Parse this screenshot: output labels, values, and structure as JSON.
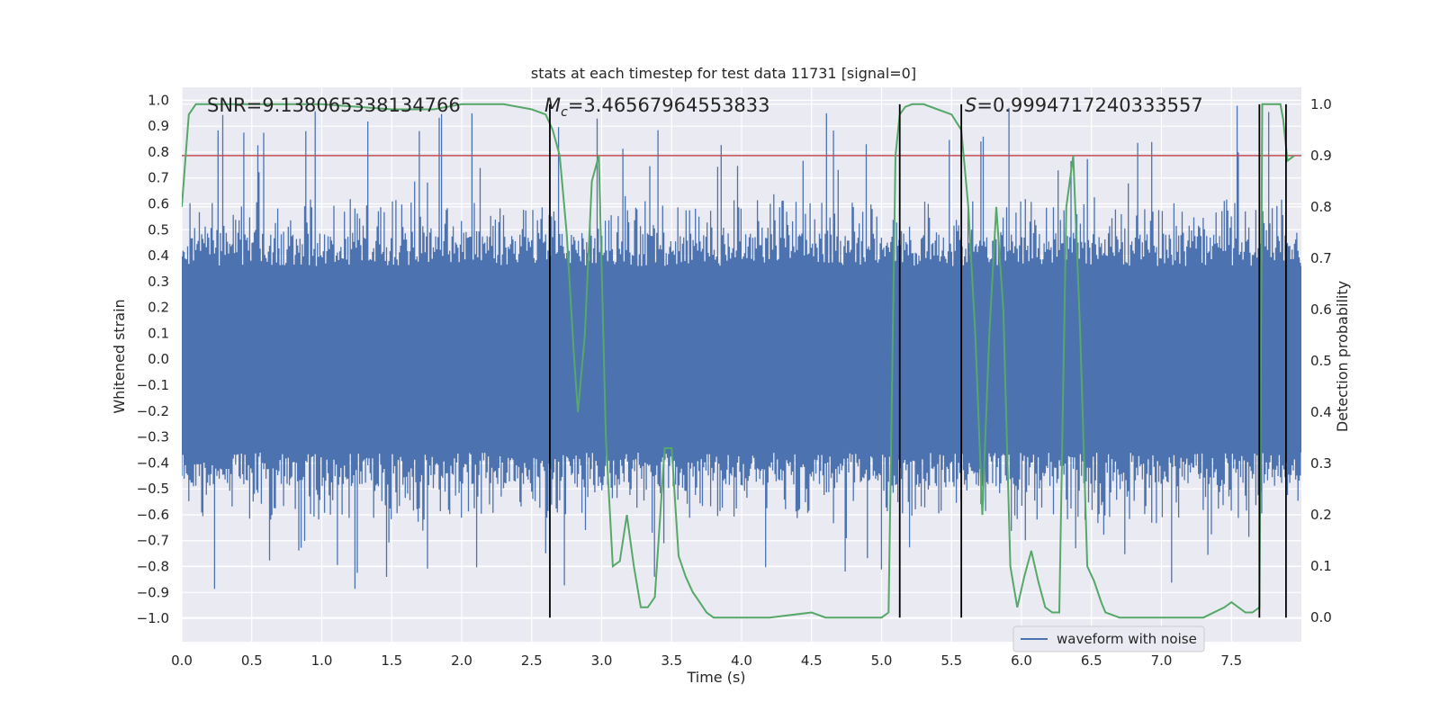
{
  "chart_data": {
    "type": "line",
    "title": "stats at each timestep for test data 11731 [signal=0]",
    "xlabel": "Time (s)",
    "ylabel_left": "Whitened strain",
    "ylabel_right": "Detection probability",
    "xlim": [
      0.0,
      8.0
    ],
    "ylim_left": [
      -1.09,
      1.05
    ],
    "ylim_right": [
      -0.047,
      1.033
    ],
    "x_ticks": [
      "0.0",
      "0.5",
      "1.0",
      "1.5",
      "2.0",
      "2.5",
      "3.0",
      "3.5",
      "4.0",
      "4.5",
      "5.0",
      "5.5",
      "6.0",
      "6.5",
      "7.0",
      "7.5"
    ],
    "y_left_ticks": [
      "1.0",
      "0.9",
      "0.8",
      "0.7",
      "0.6",
      "0.5",
      "0.4",
      "0.3",
      "0.2",
      "0.1",
      "0.0",
      "−0.1",
      "−0.2",
      "−0.3",
      "−0.4",
      "−0.5",
      "−0.6",
      "−0.7",
      "−0.8",
      "−0.9",
      "−1.0"
    ],
    "y_right_ticks": [
      "0.0",
      "0.1",
      "0.2",
      "0.3",
      "0.4",
      "0.5",
      "0.6",
      "0.7",
      "0.8",
      "0.9",
      "1.0"
    ],
    "annotations": {
      "snr": "SNR=9.138065338134766",
      "mc_symbol": "M",
      "mc_sub": "c",
      "mc_value": "=3.46567964553833",
      "s_symbol": "S",
      "s_value": "=0.9994717240333557"
    },
    "threshold": 0.9,
    "vertical_lines": [
      2.63,
      5.13,
      5.57,
      7.7,
      7.89
    ],
    "series": [
      {
        "name": "waveform with noise",
        "axis": "left",
        "color": "#4c72b0",
        "kind": "noise",
        "envelope_core": 0.36,
        "typical_peak": 0.62,
        "max_peak": 0.98,
        "min_trough": -0.89
      },
      {
        "name": "detection probability",
        "axis": "right",
        "color": "#55a868",
        "x": [
          0.0,
          0.05,
          0.1,
          0.2,
          0.5,
          1.0,
          1.5,
          1.7,
          1.8,
          2.0,
          2.3,
          2.5,
          2.6,
          2.65,
          2.7,
          2.75,
          2.8,
          2.83,
          2.88,
          2.93,
          2.98,
          3.03,
          3.08,
          3.13,
          3.18,
          3.23,
          3.28,
          3.33,
          3.38,
          3.45,
          3.5,
          3.55,
          3.6,
          3.65,
          3.7,
          3.75,
          3.8,
          3.9,
          4.0,
          4.2,
          4.5,
          4.6,
          5.0,
          5.05,
          5.1,
          5.13,
          5.17,
          5.22,
          5.3,
          5.4,
          5.5,
          5.57,
          5.62,
          5.67,
          5.72,
          5.77,
          5.82,
          5.87,
          5.92,
          5.97,
          6.02,
          6.07,
          6.12,
          6.17,
          6.22,
          6.27,
          6.32,
          6.37,
          6.42,
          6.47,
          6.52,
          6.57,
          6.6,
          6.7,
          6.8,
          7.0,
          7.3,
          7.45,
          7.5,
          7.6,
          7.65,
          7.7,
          7.72,
          7.77,
          7.85,
          7.87,
          7.9,
          7.95
        ],
        "values": [
          0.8,
          0.98,
          1.0,
          1.0,
          1.0,
          1.0,
          0.99,
          0.99,
          0.99,
          1.0,
          1.0,
          0.99,
          0.98,
          0.95,
          0.9,
          0.75,
          0.52,
          0.4,
          0.55,
          0.85,
          0.9,
          0.35,
          0.1,
          0.11,
          0.2,
          0.1,
          0.02,
          0.02,
          0.04,
          0.33,
          0.33,
          0.12,
          0.08,
          0.05,
          0.03,
          0.01,
          0.0,
          0.0,
          0.0,
          0.0,
          0.01,
          0.0,
          0.0,
          0.01,
          0.9,
          0.98,
          0.995,
          1.0,
          1.0,
          0.99,
          0.98,
          0.95,
          0.8,
          0.55,
          0.2,
          0.55,
          0.8,
          0.6,
          0.1,
          0.02,
          0.08,
          0.13,
          0.07,
          0.02,
          0.01,
          0.01,
          0.8,
          0.9,
          0.55,
          0.1,
          0.07,
          0.03,
          0.01,
          0.0,
          0.0,
          0.0,
          0.0,
          0.02,
          0.03,
          0.01,
          0.01,
          0.02,
          1.0,
          1.0,
          1.0,
          0.97,
          0.89,
          0.9
        ]
      }
    ],
    "legend": {
      "label": "waveform with noise",
      "position": "lower-right"
    },
    "style": {
      "background": "#eaeaf2",
      "grid_color": "#ffffff",
      "threshold_color": "#c44e52",
      "vline_color": "#000000"
    }
  }
}
